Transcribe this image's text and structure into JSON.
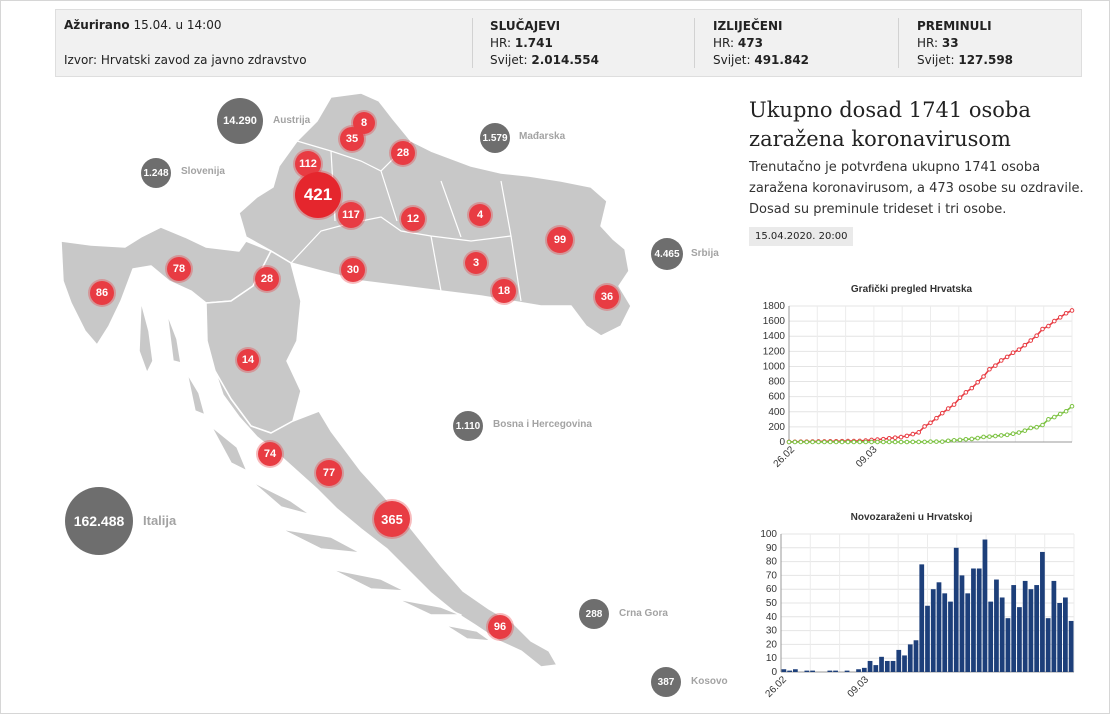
{
  "info": {
    "updated_label": "Ažurirano",
    "updated_value": "15.04. u 14:00",
    "source": "Izvor: Hrvatski zavod za javno zdravstvo",
    "stats": [
      {
        "heading": "SLUČAJEVI",
        "hr_label": "HR:",
        "hr_value": "1.741",
        "world_label": "Svijet:",
        "world_value": "2.014.554"
      },
      {
        "heading": "IZLIJEČENI",
        "hr_label": "HR:",
        "hr_value": "473",
        "world_label": "Svijet:",
        "world_value": "491.842"
      },
      {
        "heading": "PREMINULI",
        "hr_label": "HR:",
        "hr_value": "33",
        "world_label": "Svijet:",
        "world_value": "127.598"
      }
    ]
  },
  "map": {
    "counties": [
      "8",
      "35",
      "28",
      "112",
      "421",
      "117",
      "12",
      "4",
      "99",
      "3",
      "18",
      "36",
      "78",
      "86",
      "28",
      "30",
      "14",
      "74",
      "77",
      "365",
      "96"
    ],
    "countries": [
      {
        "value": "14.290",
        "name": "Austrija"
      },
      {
        "value": "1.579",
        "name": "Mađarska"
      },
      {
        "value": "1.248",
        "name": "Slovenija"
      },
      {
        "value": "4.465",
        "name": "Srbija"
      },
      {
        "value": "1.110",
        "name": "Bosna i Hercegovina"
      },
      {
        "value": "162.488",
        "name": "Italija"
      },
      {
        "value": "288",
        "name": "Crna Gora"
      },
      {
        "value": "387",
        "name": "Kosovo"
      }
    ],
    "colors": {
      "land": "#c8c8c8",
      "border": "#ffffff",
      "county_bubble": "#e83c43",
      "country_bubble": "#6e6e6e"
    }
  },
  "article": {
    "headline": "Ukupno dosad 1741 osoba zaražena koronavirusom",
    "lead": "Trenutačno je potvrđena ukupno 1741 osoba zaražena koronavirusom, a 473 osobe su ozdravile. Dosad su preminule trideset i tri osobe.",
    "timestamp": "15.04.2020. 20:00"
  },
  "chart_data": [
    {
      "type": "line",
      "title": "Grafički pregled Hrvatska",
      "ylim": [
        0,
        1800
      ],
      "yticks": [
        "1800",
        "1600",
        "1400",
        "1200",
        "1000",
        "800",
        "600",
        "400",
        "200",
        "0"
      ],
      "xticks": [
        "26.02",
        "09.03"
      ],
      "grid": true,
      "series": [
        {
          "color": "#e83c43",
          "values": [
            1,
            3,
            5,
            5,
            6,
            7,
            7,
            9,
            10,
            11,
            12,
            12,
            14,
            19,
            27,
            32,
            38,
            49,
            57,
            65,
            81,
            105,
            128,
            206,
            254,
            315,
            382,
            442,
            495,
            586,
            657,
            713,
            790,
            867,
            963,
            1011,
            1079,
            1126,
            1182,
            1222,
            1282,
            1343,
            1407,
            1495,
            1534,
            1600,
            1650,
            1704,
            1741
          ]
        },
        {
          "color": "#7cc242",
          "values": [
            0,
            0,
            0,
            0,
            0,
            0,
            0,
            0,
            0,
            0,
            0,
            0,
            0,
            0,
            0,
            0,
            0,
            0,
            0,
            0,
            0,
            1,
            1,
            1,
            5,
            5,
            5,
            16,
            22,
            28,
            36,
            40,
            52,
            67,
            71,
            79,
            87,
            95,
            110,
            125,
            150,
            186,
            196,
            225,
            300,
            330,
            370,
            407,
            473
          ]
        }
      ]
    },
    {
      "type": "bar",
      "title": "Novozaraženi u Hrvatskoj",
      "ylim": [
        0,
        100
      ],
      "yticks": [
        "100",
        "90",
        "80",
        "70",
        "60",
        "50",
        "40",
        "30",
        "20",
        "10",
        "0"
      ],
      "xticks": [
        "26.02",
        "09.03"
      ],
      "grid": true,
      "color": "#1d3f7a",
      "values": [
        2,
        1,
        2,
        0,
        1,
        1,
        0,
        0,
        1,
        1,
        0,
        1,
        0,
        2,
        3,
        8,
        5,
        11,
        8,
        8,
        16,
        12,
        20,
        23,
        78,
        48,
        60,
        65,
        57,
        51,
        90,
        70,
        57,
        75,
        75,
        96,
        51,
        67,
        54,
        39,
        63,
        47,
        66,
        60,
        63,
        87,
        39,
        66,
        50,
        54,
        37
      ]
    }
  ]
}
